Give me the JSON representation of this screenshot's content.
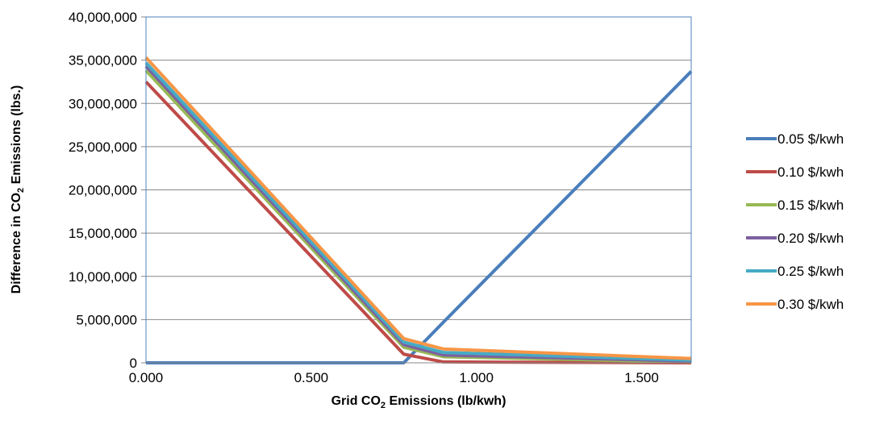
{
  "chart_data": {
    "type": "line",
    "title": "",
    "xlabel": {
      "prefix": "Grid CO",
      "sub": "2",
      "suffix": " Emissions  (lb/kwh)"
    },
    "ylabel": {
      "prefix": "Difference in CO",
      "sub": "2",
      "suffix": " Emissions  (lbs.)"
    },
    "xlim": [
      0,
      1.65
    ],
    "ylim": [
      0,
      40000000
    ],
    "x_ticks": [
      0,
      0.5,
      1.0,
      1.5
    ],
    "x_tick_labels": [
      "0.000",
      "0.500",
      "1.000",
      "1.500"
    ],
    "y_ticks": [
      0,
      5000000,
      10000000,
      15000000,
      20000000,
      25000000,
      30000000,
      35000000,
      40000000
    ],
    "y_tick_labels": [
      "0",
      "5,000,000",
      "10,000,000",
      "15,000,000",
      "20,000,000",
      "25,000,000",
      "30,000,000",
      "35,000,000",
      "40,000,000"
    ],
    "grid": "horizontal",
    "legend_position": "right",
    "x": [
      0,
      0.78,
      0.9,
      1.65
    ],
    "series": [
      {
        "name": "0.05 $/kwh",
        "color": "#4a7ebb",
        "values": [
          0,
          0,
          4700000,
          33700000
        ]
      },
      {
        "name": "0.10 $/kwh",
        "color": "#be4b48",
        "values": [
          32500000,
          1000000,
          100000,
          0
        ]
      },
      {
        "name": "0.15 $/kwh",
        "color": "#98b954",
        "values": [
          33800000,
          1800000,
          700000,
          100000
        ]
      },
      {
        "name": "0.20 $/kwh",
        "color": "#7d60a0",
        "values": [
          34300000,
          2100000,
          900000,
          200000
        ]
      },
      {
        "name": "0.25 $/kwh",
        "color": "#46aac5",
        "values": [
          34700000,
          2400000,
          1200000,
          300000
        ]
      },
      {
        "name": "0.30 $/kwh",
        "color": "#f79646",
        "values": [
          35300000,
          2800000,
          1600000,
          500000
        ]
      }
    ]
  }
}
